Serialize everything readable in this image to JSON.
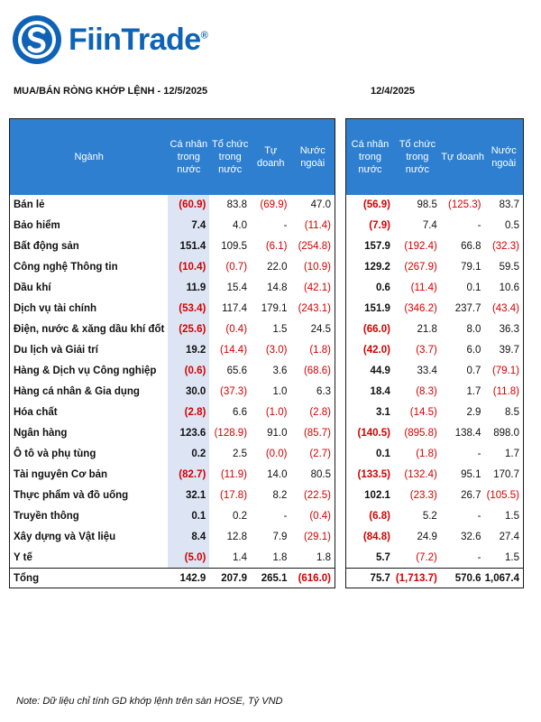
{
  "brand": {
    "name": "FiinTrade",
    "mark": "®"
  },
  "left": {
    "title": "MUA/BÁN RÒNG KHỚP LỆNH - 12/5/2025",
    "headers": [
      "Ngành",
      "Cá nhân trong nước",
      "Tổ chức trong nước",
      "Tự doanh",
      "Nước ngoài"
    ],
    "rows": [
      {
        "sector": "Bán lẻ",
        "values": [
          "(60.9)",
          "83.8",
          "(69.9)",
          "47.0"
        ]
      },
      {
        "sector": "Bảo hiểm",
        "values": [
          "7.4",
          "4.0",
          "-",
          "(11.4)"
        ]
      },
      {
        "sector": "Bất động sản",
        "values": [
          "151.4",
          "109.5",
          "(6.1)",
          "(254.8)"
        ]
      },
      {
        "sector": "Công nghệ Thông tin",
        "values": [
          "(10.4)",
          "(0.7)",
          "22.0",
          "(10.9)"
        ]
      },
      {
        "sector": "Dầu khí",
        "values": [
          "11.9",
          "15.4",
          "14.8",
          "(42.1)"
        ]
      },
      {
        "sector": "Dịch vụ tài chính",
        "values": [
          "(53.4)",
          "117.4",
          "179.1",
          "(243.1)"
        ]
      },
      {
        "sector": "Điện, nước & xăng dầu khí đốt",
        "values": [
          "(25.6)",
          "(0.4)",
          "1.5",
          "24.5"
        ]
      },
      {
        "sector": "Du lịch và Giải trí",
        "values": [
          "19.2",
          "(14.4)",
          "(3.0)",
          "(1.8)"
        ]
      },
      {
        "sector": "Hàng & Dịch vụ Công nghiệp",
        "values": [
          "(0.6)",
          "65.6",
          "3.6",
          "(68.6)"
        ]
      },
      {
        "sector": "Hàng cá nhân & Gia dụng",
        "values": [
          "30.0",
          "(37.3)",
          "1.0",
          "6.3"
        ]
      },
      {
        "sector": "Hóa chất",
        "values": [
          "(2.8)",
          "6.6",
          "(1.0)",
          "(2.8)"
        ]
      },
      {
        "sector": "Ngân hàng",
        "values": [
          "123.6",
          "(128.9)",
          "91.0",
          "(85.7)"
        ]
      },
      {
        "sector": "Ô tô và phụ tùng",
        "values": [
          "0.2",
          "2.5",
          "(0.0)",
          "(2.7)"
        ]
      },
      {
        "sector": "Tài nguyên Cơ bản",
        "values": [
          "(82.7)",
          "(11.9)",
          "14.0",
          "80.5"
        ]
      },
      {
        "sector": "Thực phẩm và đồ uống",
        "values": [
          "32.1",
          "(17.8)",
          "8.2",
          "(22.5)"
        ]
      },
      {
        "sector": "Truyền thông",
        "values": [
          "0.1",
          "0.2",
          "-",
          "(0.4)"
        ]
      },
      {
        "sector": "Xây dựng và Vật liệu",
        "values": [
          "8.4",
          "12.8",
          "7.9",
          "(29.1)"
        ]
      },
      {
        "sector": "Y tế",
        "values": [
          "(5.0)",
          "1.4",
          "1.8",
          "1.8"
        ]
      }
    ],
    "total": {
      "label": "Tổng",
      "values": [
        "142.9",
        "207.9",
        "265.1",
        "(616.0)"
      ]
    }
  },
  "right": {
    "title": "12/4/2025",
    "headers": [
      "Cá nhân trong nước",
      "Tổ chức trong nước",
      "Tự doanh",
      "Nước ngoài"
    ],
    "rows": [
      [
        "(56.9)",
        "98.5",
        "(125.3)",
        "83.7"
      ],
      [
        "(7.9)",
        "7.4",
        "-",
        "0.5"
      ],
      [
        "157.9",
        "(192.4)",
        "66.8",
        "(32.3)"
      ],
      [
        "129.2",
        "(267.9)",
        "79.1",
        "59.5"
      ],
      [
        "0.6",
        "(11.4)",
        "0.1",
        "10.6"
      ],
      [
        "151.9",
        "(346.2)",
        "237.7",
        "(43.4)"
      ],
      [
        "(66.0)",
        "21.8",
        "8.0",
        "36.3"
      ],
      [
        "(42.0)",
        "(3.7)",
        "6.0",
        "39.7"
      ],
      [
        "44.9",
        "33.4",
        "0.7",
        "(79.1)"
      ],
      [
        "18.4",
        "(8.3)",
        "1.7",
        "(11.8)"
      ],
      [
        "3.1",
        "(14.5)",
        "2.9",
        "8.5"
      ],
      [
        "(140.5)",
        "(895.8)",
        "138.4",
        "898.0"
      ],
      [
        "0.1",
        "(1.8)",
        "-",
        "1.7"
      ],
      [
        "(133.5)",
        "(132.4)",
        "95.1",
        "170.7"
      ],
      [
        "102.1",
        "(23.3)",
        "26.7",
        "(105.5)"
      ],
      [
        "(6.8)",
        "5.2",
        "-",
        "1.5"
      ],
      [
        "(84.8)",
        "24.9",
        "32.6",
        "27.4"
      ],
      [
        "5.7",
        "(7.2)",
        "-",
        "1.5"
      ]
    ],
    "total": [
      "75.7",
      "(1,713.7)",
      "570.6",
      "1,067.4"
    ]
  },
  "note": "Note: Dữ liệu chỉ tính GD khớp lệnh trên sàn HOSE, Tỷ VND",
  "colors": {
    "header": "#2f7fd0",
    "negative": "#d40000",
    "highlight": "#dde5f5",
    "brand": "#0f63b6"
  }
}
